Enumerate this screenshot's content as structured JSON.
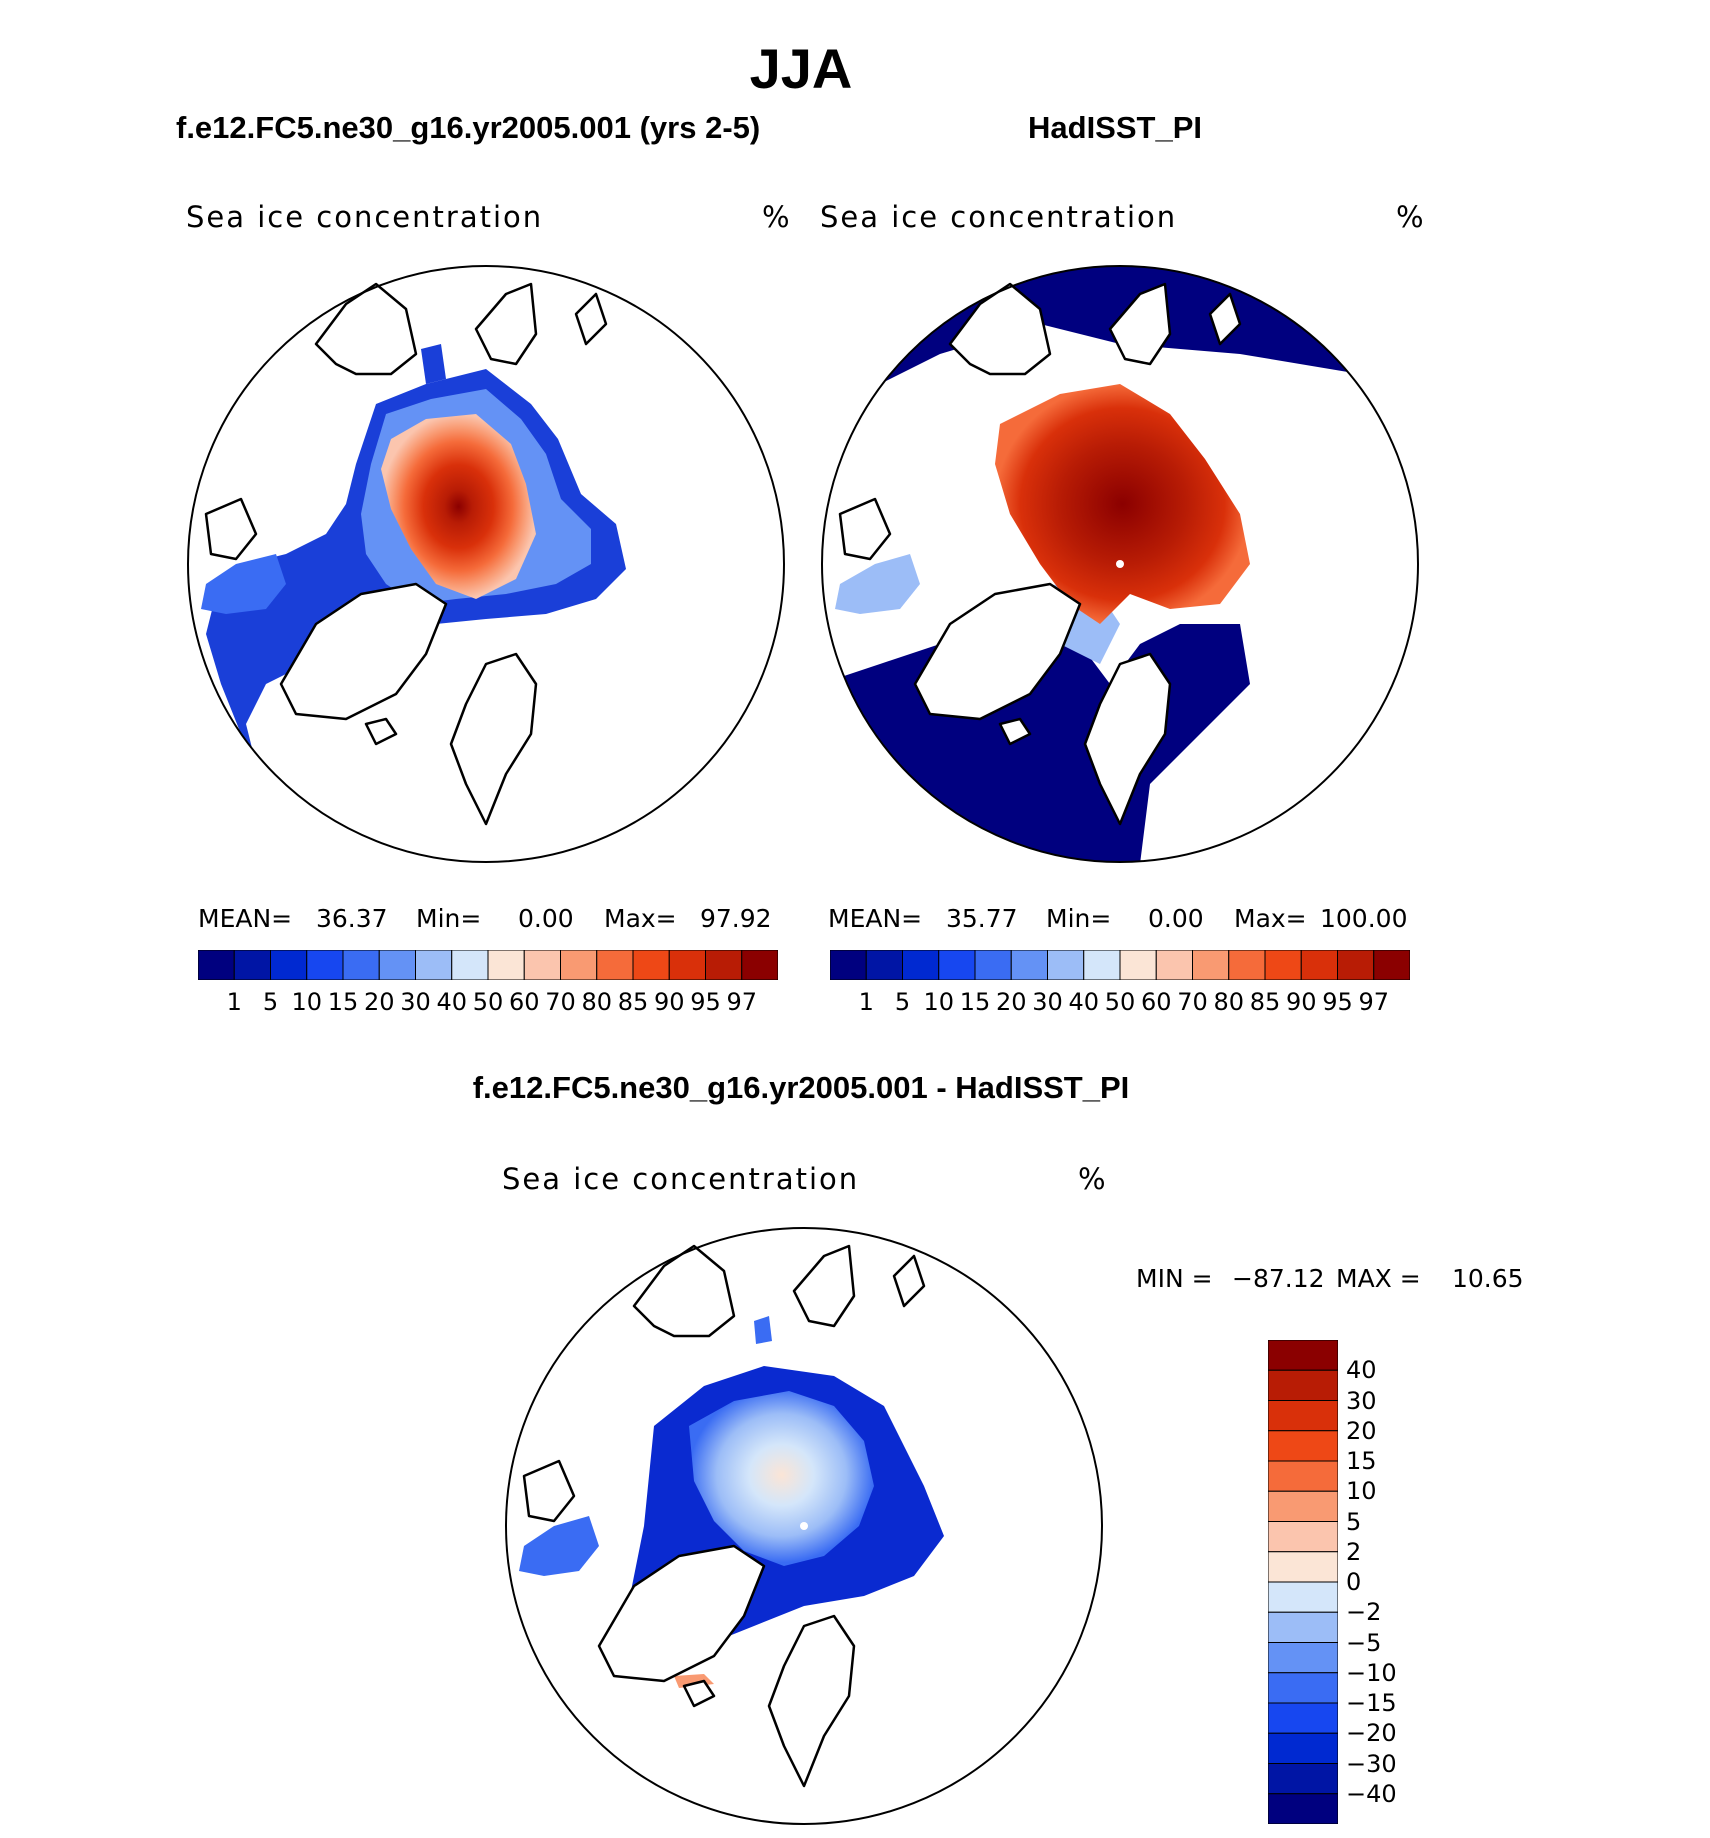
{
  "title": "JJA",
  "panels": [
    {
      "title": "f.e12.FC5.ne30_g16.yr2005.001 (yrs 2-5)",
      "variable": "Sea ice concentration",
      "units": "%",
      "stats": {
        "mean_label": "MEAN=",
        "mean": "36.37",
        "min_label": "Min=",
        "min": "0.00",
        "max_label": "Max=",
        "max": "97.92"
      }
    },
    {
      "title": "HadISST_PI",
      "variable": "Sea ice concentration",
      "units": "%",
      "stats": {
        "mean_label": "MEAN=",
        "mean": "35.77",
        "min_label": "Min=",
        "min": "0.00",
        "max_label": "Max=",
        "max": "100.00"
      }
    },
    {
      "title": "f.e12.FC5.ne30_g16.yr2005.001 - HadISST_PI",
      "variable": "Sea ice concentration",
      "units": "%",
      "stats": {
        "min_label": "MIN =",
        "min": "−87.12",
        "max_label": "MAX =",
        "max": "10.65"
      }
    }
  ],
  "colorbar_abs": {
    "labels": [
      "1",
      "5",
      "10",
      "15",
      "20",
      "30",
      "40",
      "50",
      "60",
      "70",
      "80",
      "85",
      "90",
      "95",
      "97"
    ],
    "colors": [
      "#00007f",
      "#0015a5",
      "#0029d1",
      "#1747f0",
      "#3a6cf3",
      "#6492f5",
      "#9cbdf7",
      "#d4e6fa",
      "#fbe5d6",
      "#fbc5ae",
      "#f99a72",
      "#f56b3a",
      "#ee4816",
      "#d9300a",
      "#b81c05",
      "#8b0000"
    ]
  },
  "colorbar_diff": {
    "labels_top_down": [
      "40",
      "30",
      "20",
      "15",
      "10",
      "5",
      "2",
      "0",
      "−2",
      "−5",
      "−10",
      "−15",
      "−20",
      "−30",
      "−40"
    ],
    "colors_top_down": [
      "#8b0000",
      "#b81c05",
      "#d9300a",
      "#ee4816",
      "#f56b3a",
      "#f99a72",
      "#fbc5ae",
      "#fbe5d6",
      "#d4e6fa",
      "#9cbdf7",
      "#6492f5",
      "#3a6cf3",
      "#1747f0",
      "#0029d1",
      "#0015a5",
      "#00007f"
    ]
  },
  "palette": {
    "ice_high": "#c8300a",
    "ice_peak": "#8b0000",
    "ice_low": "#1a3fd8",
    "ocean_deep": "#00007f",
    "diff_neg": "#0a2ad0",
    "diff_light": "#d4e6fa",
    "land_line": "#000000"
  }
}
